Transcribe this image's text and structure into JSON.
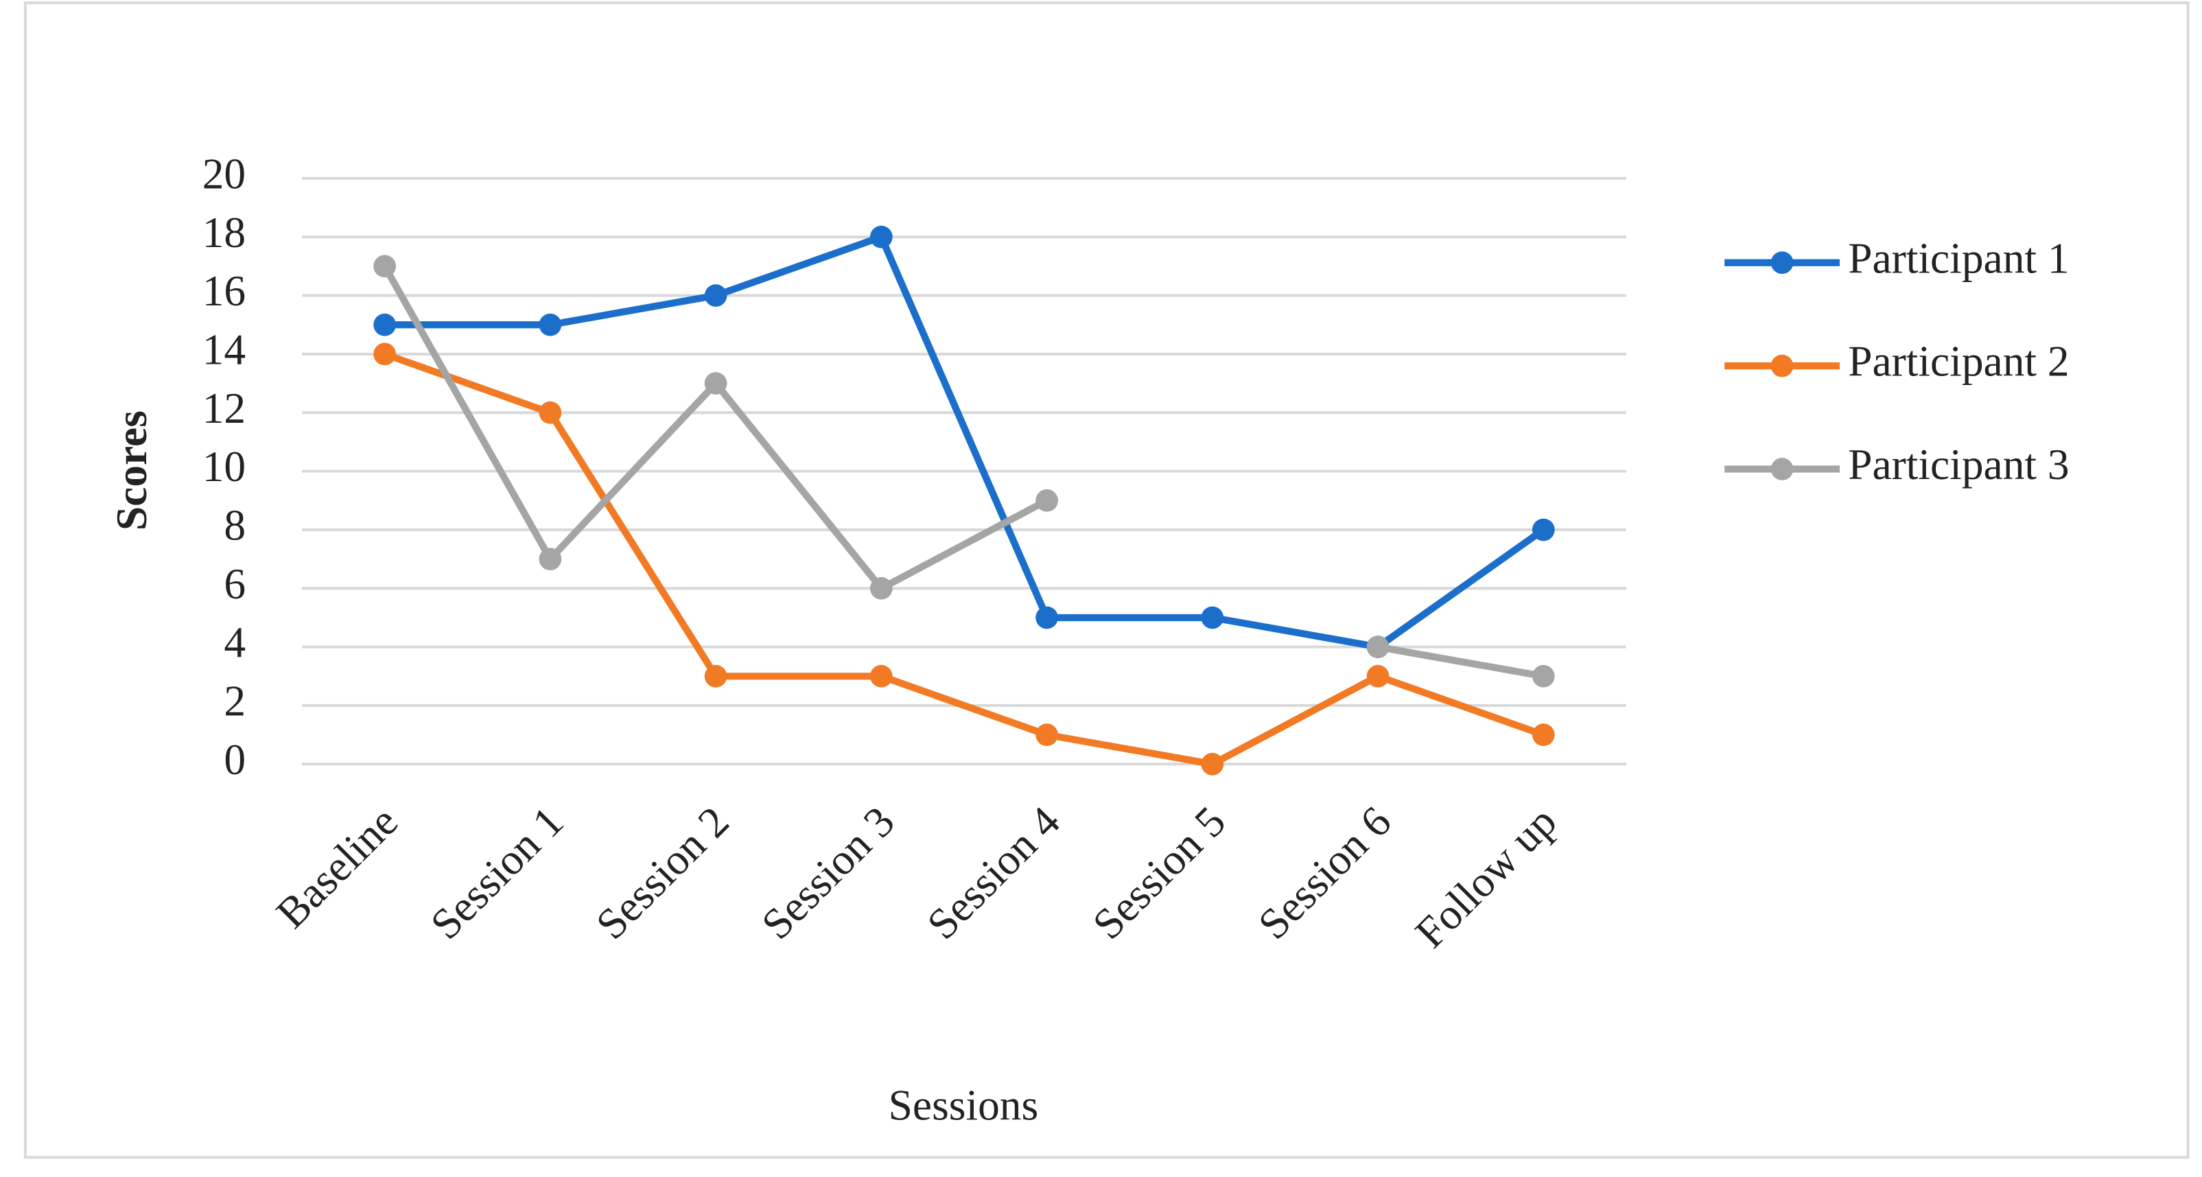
{
  "chart_data": {
    "type": "line",
    "x_label": "Sessions",
    "y_label": "Scores",
    "categories": [
      "Baseline",
      "Session 1",
      "Session 2",
      "Session 3",
      "Session 4",
      "Session 5",
      "Session 6",
      "Follow up"
    ],
    "series": [
      {
        "name": "Participant 1",
        "color": "#1b6fcb",
        "values": [
          15,
          15,
          16,
          18,
          5,
          5,
          4,
          8
        ]
      },
      {
        "name": "Participant 2",
        "color": "#f27a24",
        "values": [
          14,
          12,
          3,
          3,
          1,
          0,
          3,
          1
        ]
      },
      {
        "name": "Participant 3",
        "color": "#a5a5a5",
        "values": [
          17,
          7,
          13,
          6,
          9,
          null,
          4,
          3
        ]
      }
    ],
    "ylim": [
      0,
      20
    ],
    "yticks": [
      0,
      2,
      4,
      6,
      8,
      10,
      12,
      14,
      16,
      18,
      20
    ],
    "grid": true,
    "legend": "right"
  }
}
